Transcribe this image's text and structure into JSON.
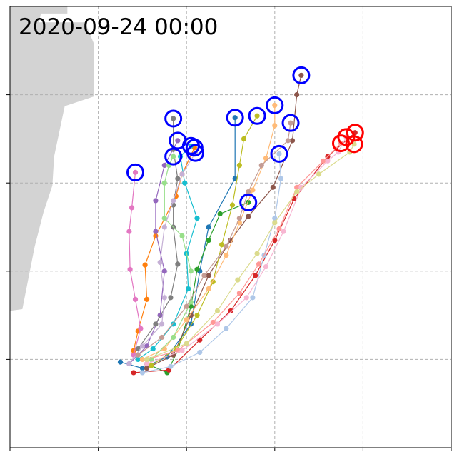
{
  "chart_data": {
    "type": "line",
    "title": "2020-09-24 00:00",
    "grid": true,
    "grid_style": "dashed",
    "x_range": [
      0,
      5
    ],
    "y_range": [
      0,
      5
    ],
    "x_ticks": [
      0,
      1,
      2,
      3,
      4,
      5
    ],
    "y_ticks": [
      1,
      2,
      3,
      4
    ],
    "tick_labels_shown": false,
    "land_color": "#d3d3d3",
    "land_outline": [
      [
        0.0,
        5.0
      ],
      [
        0.65,
        5.0
      ],
      [
        0.65,
        4.92
      ],
      [
        0.35,
        4.92
      ],
      [
        0.33,
        4.82
      ],
      [
        0.85,
        4.82
      ],
      [
        0.95,
        4.58
      ],
      [
        0.95,
        3.98
      ],
      [
        0.62,
        3.87
      ],
      [
        0.5,
        3.3
      ],
      [
        0.48,
        2.97
      ],
      [
        0.38,
        2.67
      ],
      [
        0.28,
        2.28
      ],
      [
        0.14,
        1.57
      ],
      [
        0.0,
        1.55
      ]
    ],
    "marker_ring_colors": {
      "current": "#0000ff",
      "highlight": "#ff0000"
    },
    "series": [
      {
        "color": "#1f77b4",
        "ring": "current",
        "points": [
          [
            1.25,
            0.97
          ],
          [
            1.5,
            0.9
          ],
          [
            1.78,
            1.03
          ],
          [
            2.05,
            1.4
          ],
          [
            2.15,
            2.0
          ],
          [
            2.25,
            2.5
          ],
          [
            2.55,
            3.05
          ],
          [
            2.55,
            3.74
          ]
        ]
      },
      {
        "color": "#ff7f0e",
        "ring": "current",
        "points": [
          [
            1.4,
            1.1
          ],
          [
            1.45,
            1.32
          ],
          [
            1.55,
            1.68
          ],
          [
            1.53,
            2.07
          ],
          [
            1.65,
            2.4
          ],
          [
            1.88,
            2.85
          ],
          [
            1.95,
            3.1
          ],
          [
            2.09,
            3.4
          ]
        ]
      },
      {
        "color": "#2ca02c",
        "ring": "current",
        "points": [
          [
            1.55,
            0.95
          ],
          [
            1.78,
            0.85
          ],
          [
            1.9,
            1.1
          ],
          [
            2.05,
            1.6
          ],
          [
            2.12,
            2.02
          ],
          [
            2.25,
            2.35
          ],
          [
            2.38,
            2.65
          ],
          [
            2.7,
            2.78
          ]
        ]
      },
      {
        "color": "#d62728",
        "ring": "highlight",
        "points": [
          [
            1.4,
            0.85
          ],
          [
            1.8,
            0.88
          ],
          [
            2.15,
            1.22
          ],
          [
            2.5,
            1.55
          ],
          [
            2.78,
            1.95
          ],
          [
            3.0,
            2.35
          ],
          [
            3.22,
            2.82
          ],
          [
            3.6,
            3.3
          ],
          [
            3.91,
            3.57
          ]
        ]
      },
      {
        "color": "#9467bd",
        "ring": "current",
        "points": [
          [
            1.35,
            0.95
          ],
          [
            1.55,
            1.15
          ],
          [
            1.7,
            1.5
          ],
          [
            1.75,
            2.0
          ],
          [
            1.65,
            2.45
          ],
          [
            1.65,
            2.8
          ],
          [
            1.75,
            3.2
          ],
          [
            1.9,
            3.48
          ]
        ]
      },
      {
        "color": "#8c564b",
        "ring": "current",
        "points": [
          [
            1.55,
            0.9
          ],
          [
            1.85,
            1.05
          ],
          [
            2.05,
            1.5
          ],
          [
            2.25,
            1.95
          ],
          [
            2.5,
            2.35
          ],
          [
            2.7,
            2.62
          ],
          [
            2.98,
            2.95
          ],
          [
            3.2,
            3.48
          ],
          [
            3.25,
            4.0
          ],
          [
            3.3,
            4.22
          ]
        ]
      },
      {
        "color": "#e377c2",
        "ring": "current",
        "points": [
          [
            1.4,
            1.05
          ],
          [
            1.48,
            1.35
          ],
          [
            1.42,
            1.68
          ],
          [
            1.36,
            2.02
          ],
          [
            1.35,
            2.45
          ],
          [
            1.38,
            2.72
          ],
          [
            1.42,
            3.12
          ]
        ]
      },
      {
        "color": "#7f7f7f",
        "ring": "current",
        "points": [
          [
            1.45,
            1.12
          ],
          [
            1.65,
            1.4
          ],
          [
            1.82,
            1.7
          ],
          [
            1.9,
            2.08
          ],
          [
            1.85,
            2.5
          ],
          [
            1.85,
            2.75
          ],
          [
            1.9,
            3.05
          ],
          [
            1.85,
            3.38
          ],
          [
            1.85,
            3.73
          ]
        ]
      },
      {
        "color": "#bcbd22",
        "ring": "current",
        "points": [
          [
            1.6,
            0.93
          ],
          [
            1.88,
            1.12
          ],
          [
            2.12,
            1.5
          ],
          [
            2.3,
            1.88
          ],
          [
            2.4,
            2.3
          ],
          [
            2.52,
            2.75
          ],
          [
            2.6,
            3.2
          ],
          [
            2.65,
            3.5
          ],
          [
            2.8,
            3.76
          ]
        ]
      },
      {
        "color": "#17becf",
        "ring": "current",
        "points": [
          [
            1.45,
            1.0
          ],
          [
            1.62,
            1.12
          ],
          [
            1.85,
            1.4
          ],
          [
            2.02,
            1.8
          ],
          [
            2.0,
            2.2
          ],
          [
            2.12,
            2.6
          ],
          [
            1.98,
            3.0
          ],
          [
            1.93,
            3.3
          ],
          [
            2.05,
            3.42
          ]
        ]
      },
      {
        "color": "#aec7e8",
        "ring": "current",
        "points": [
          [
            1.5,
            0.85
          ],
          [
            1.82,
            0.92
          ],
          [
            2.15,
            1.08
          ],
          [
            2.45,
            1.35
          ],
          [
            2.75,
            1.7
          ],
          [
            2.88,
            2.18
          ],
          [
            3.0,
            2.6
          ],
          [
            3.07,
            3.05
          ],
          [
            3.05,
            3.33
          ]
        ]
      },
      {
        "color": "#ffbb78",
        "ring": "current",
        "points": [
          [
            1.5,
            1.0
          ],
          [
            1.75,
            1.12
          ],
          [
            2.0,
            1.45
          ],
          [
            2.25,
            1.8
          ],
          [
            2.45,
            2.18
          ],
          [
            2.6,
            2.55
          ],
          [
            2.75,
            2.92
          ],
          [
            2.9,
            3.28
          ],
          [
            3.0,
            3.65
          ],
          [
            3.0,
            3.88
          ]
        ]
      },
      {
        "color": "#98df8a",
        "ring": "current",
        "points": [
          [
            1.6,
            1.0
          ],
          [
            1.85,
            1.25
          ],
          [
            2.05,
            1.65
          ],
          [
            2.05,
            2.0
          ],
          [
            1.95,
            2.4
          ],
          [
            1.75,
            2.6
          ],
          [
            1.75,
            3.0
          ],
          [
            1.8,
            3.2
          ],
          [
            1.85,
            3.3
          ]
        ]
      },
      {
        "color": "#ff9896",
        "ring": "highlight",
        "points": [
          [
            1.55,
            1.0
          ],
          [
            1.9,
            1.1
          ],
          [
            2.3,
            1.42
          ],
          [
            2.6,
            1.75
          ],
          [
            2.82,
            2.08
          ],
          [
            3.05,
            2.48
          ],
          [
            3.25,
            2.95
          ],
          [
            3.55,
            3.25
          ],
          [
            3.75,
            3.45
          ]
        ]
      },
      {
        "color": "#c5b0d5",
        "ring": "current",
        "points": [
          [
            1.35,
            0.95
          ],
          [
            1.5,
            1.15
          ],
          [
            1.72,
            1.4
          ],
          [
            1.75,
            1.7
          ],
          [
            1.7,
            2.1
          ],
          [
            1.75,
            2.5
          ],
          [
            1.85,
            2.8
          ],
          [
            1.95,
            3.1
          ],
          [
            2.1,
            3.34
          ]
        ]
      },
      {
        "color": "#c49c94",
        "ring": "current",
        "points": [
          [
            1.45,
            1.05
          ],
          [
            1.72,
            1.25
          ],
          [
            2.0,
            1.6
          ],
          [
            2.2,
            1.95
          ],
          [
            2.45,
            2.28
          ],
          [
            2.6,
            2.6
          ],
          [
            2.7,
            2.9
          ],
          [
            2.85,
            3.2
          ],
          [
            3.15,
            3.48
          ],
          [
            3.18,
            3.68
          ]
        ]
      },
      {
        "color": "#f7b6d2",
        "ring": "highlight",
        "points": [
          [
            1.55,
            0.95
          ],
          [
            1.95,
            1.1
          ],
          [
            2.35,
            1.4
          ],
          [
            2.68,
            1.7
          ],
          [
            2.9,
            2.05
          ],
          [
            3.1,
            2.45
          ],
          [
            3.3,
            2.95
          ],
          [
            3.6,
            3.25
          ],
          [
            3.72,
            3.35
          ],
          [
            3.81,
            3.52
          ]
        ]
      },
      {
        "color": "#dbdb8d",
        "ring": "highlight",
        "points": [
          [
            1.55,
            1.0
          ],
          [
            2.0,
            1.18
          ],
          [
            2.35,
            1.55
          ],
          [
            2.58,
            1.9
          ],
          [
            2.8,
            2.2
          ],
          [
            3.0,
            2.55
          ],
          [
            3.25,
            2.9
          ],
          [
            3.5,
            3.1
          ],
          [
            3.85,
            3.35
          ],
          [
            3.9,
            3.44
          ]
        ]
      }
    ]
  }
}
